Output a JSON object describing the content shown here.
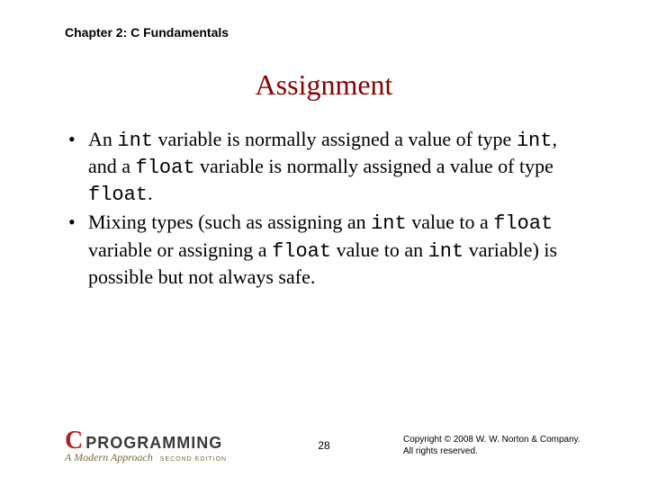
{
  "header": {
    "chapter_label": "Chapter 2: C Fundamentals"
  },
  "title": "Assignment",
  "bullets": [
    {
      "segments": [
        {
          "text": "An ",
          "code": false
        },
        {
          "text": "int",
          "code": true
        },
        {
          "text": " variable is normally assigned a value of type ",
          "code": false
        },
        {
          "text": "int",
          "code": true
        },
        {
          "text": ", and a ",
          "code": false
        },
        {
          "text": "float",
          "code": true
        },
        {
          "text": " variable is normally assigned a value of type ",
          "code": false
        },
        {
          "text": "float",
          "code": true
        },
        {
          "text": ".",
          "code": false
        }
      ]
    },
    {
      "segments": [
        {
          "text": "Mixing types (such as assigning an ",
          "code": false
        },
        {
          "text": "int",
          "code": true
        },
        {
          "text": " value to a ",
          "code": false
        },
        {
          "text": "float",
          "code": true
        },
        {
          "text": " variable or assigning a ",
          "code": false
        },
        {
          "text": "float",
          "code": true
        },
        {
          "text": " value to an ",
          "code": false
        },
        {
          "text": "int",
          "code": true
        },
        {
          "text": " variable) is possible but not always safe.",
          "code": false
        }
      ]
    }
  ],
  "footer": {
    "book_letter": "C",
    "book_word": "PROGRAMMING",
    "book_subtitle": "A Modern Approach",
    "book_edition": "SECOND EDITION",
    "page_number": "28",
    "copyright_line1": "Copyright © 2008 W. W. Norton & Company.",
    "copyright_line2": "All rights reserved."
  },
  "colors": {
    "title_color": "#8b0000",
    "text_color": "#000000",
    "brand_red": "#b22222",
    "brand_gray": "#3a3a3a",
    "brand_olive": "#7a6a3a",
    "background": "#ffffff"
  },
  "typography": {
    "chapter_fontsize": 14,
    "title_fontsize": 32,
    "body_fontsize": 22,
    "pagenum_fontsize": 12,
    "copyright_fontsize": 10
  }
}
